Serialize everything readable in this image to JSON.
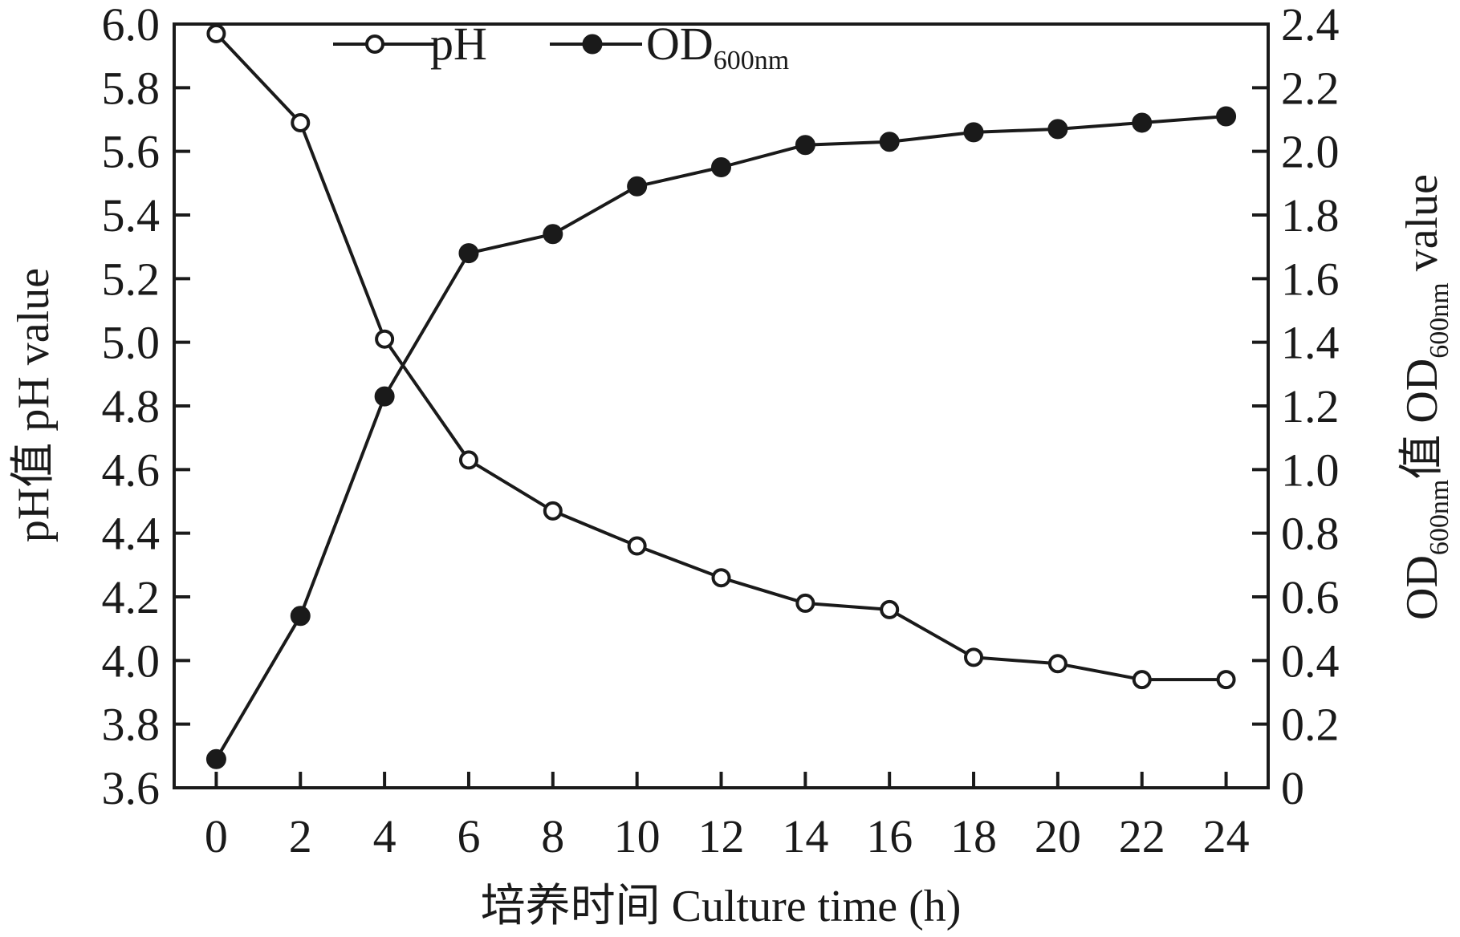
{
  "chart_data": {
    "type": "line",
    "xlabel": "培养时间 Culture time (h)",
    "ylabel_left": "pH值 pH value",
    "ylabel_right": {
      "prefix": "OD",
      "sub1": "600nm",
      "middle": "值 OD",
      "sub2": "600nm",
      "suffix": " value"
    },
    "x": [
      0,
      2,
      4,
      6,
      8,
      10,
      12,
      14,
      16,
      18,
      20,
      22,
      24
    ],
    "x_ticks": [
      "0",
      "2",
      "4",
      "6",
      "8",
      "10",
      "12",
      "14",
      "16",
      "18",
      "20",
      "22",
      "24"
    ],
    "y_left_ticks": [
      "3.6",
      "3.8",
      "4.0",
      "4.2",
      "4.4",
      "4.6",
      "4.8",
      "5.0",
      "5.2",
      "5.4",
      "5.6",
      "5.8",
      "6.0"
    ],
    "y_right_ticks": [
      "0",
      "0.2",
      "0.4",
      "0.6",
      "0.8",
      "1.0",
      "1.2",
      "1.4",
      "1.6",
      "1.8",
      "2.0",
      "2.2",
      "2.4"
    ],
    "xlim": [
      -1,
      25
    ],
    "ylim_left": [
      3.6,
      6.0
    ],
    "ylim_right": [
      0,
      2.4
    ],
    "grid": false,
    "legend_position": "top-center",
    "series": [
      {
        "name": "pH",
        "axis": "left",
        "marker": "open-circle",
        "values": [
          5.97,
          5.69,
          5.01,
          4.63,
          4.47,
          4.36,
          4.26,
          4.18,
          4.16,
          4.01,
          3.99,
          3.94,
          3.94
        ]
      },
      {
        "name": "OD",
        "name_sub": "600nm",
        "axis": "right",
        "marker": "filled-circle",
        "values": [
          0.09,
          0.54,
          1.23,
          1.68,
          1.74,
          1.89,
          1.95,
          2.02,
          2.03,
          2.06,
          2.07,
          2.09,
          2.11
        ]
      }
    ],
    "colors": {
      "line": "#1a1a1a",
      "marker_fill_open": "#ffffff",
      "marker_fill_solid": "#1a1a1a"
    }
  }
}
